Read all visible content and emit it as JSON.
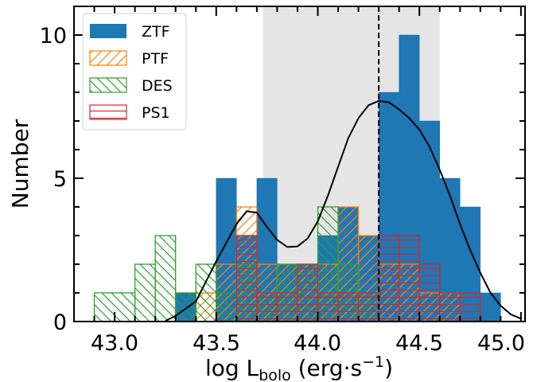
{
  "chart_data": {
    "type": "bar",
    "subtype": "stacked-overlaid histogram",
    "xlabel": {
      "main": "log L",
      "subscript": "bolo",
      "units_open": " (erg·s",
      "superscript": "−1",
      "units_close": ")"
    },
    "ylabel": "Number",
    "xlim": [
      42.8,
      45.02
    ],
    "ylim": [
      0,
      11
    ],
    "x_ticks": [
      "43.0",
      "43.5",
      "44.0",
      "44.5",
      "45.0"
    ],
    "y_ticks": [
      "0",
      "5",
      "10"
    ],
    "shaded_region": {
      "x0": 43.73,
      "x1": 44.6,
      "color": "#e5e5e5"
    },
    "vline": {
      "x": 44.3,
      "style": "dashed",
      "color": "#000000"
    },
    "legend_position": "upper-left",
    "series": [
      {
        "name": "ZTF",
        "style": "filled",
        "color": "#1f77b4",
        "bins": [
          {
            "x0": 43.3,
            "x1": 43.4,
            "count": 1
          },
          {
            "x0": 43.5,
            "x1": 43.6,
            "count": 5
          },
          {
            "x0": 43.6,
            "x1": 43.7,
            "count": 3
          },
          {
            "x0": 43.7,
            "x1": 43.8,
            "count": 5
          },
          {
            "x0": 43.8,
            "x1": 43.9,
            "count": 2
          },
          {
            "x0": 43.9,
            "x1": 44.0,
            "count": 2
          },
          {
            "x0": 44.0,
            "x1": 44.1,
            "count": 3
          },
          {
            "x0": 44.1,
            "x1": 44.2,
            "count": 4
          },
          {
            "x0": 44.2,
            "x1": 44.3,
            "count": 3
          },
          {
            "x0": 44.3,
            "x1": 44.4,
            "count": 8
          },
          {
            "x0": 44.4,
            "x1": 44.5,
            "count": 10
          },
          {
            "x0": 44.5,
            "x1": 44.6,
            "count": 7
          },
          {
            "x0": 44.6,
            "x1": 44.7,
            "count": 5
          },
          {
            "x0": 44.7,
            "x1": 44.8,
            "count": 4
          },
          {
            "x0": 44.8,
            "x1": 44.9,
            "count": 1
          }
        ]
      },
      {
        "name": "PTF",
        "style": "hatch-forward",
        "color": "#ff7f0e",
        "bins": [
          {
            "x0": 43.4,
            "x1": 43.5,
            "count": 1
          },
          {
            "x0": 43.5,
            "x1": 43.6,
            "count": 2
          },
          {
            "x0": 43.6,
            "x1": 43.7,
            "count": 4
          },
          {
            "x0": 43.7,
            "x1": 43.8,
            "count": 2
          },
          {
            "x0": 43.8,
            "x1": 43.9,
            "count": 2
          },
          {
            "x0": 43.9,
            "x1": 44.0,
            "count": 2
          },
          {
            "x0": 44.0,
            "x1": 44.1,
            "count": 2
          },
          {
            "x0": 44.1,
            "x1": 44.2,
            "count": 4
          },
          {
            "x0": 44.2,
            "x1": 44.3,
            "count": 3
          },
          {
            "x0": 44.3,
            "x1": 44.4,
            "count": 2
          },
          {
            "x0": 44.4,
            "x1": 44.5,
            "count": 2
          },
          {
            "x0": 44.5,
            "x1": 44.6,
            "count": 1
          },
          {
            "x0": 44.6,
            "x1": 44.7,
            "count": 1
          }
        ]
      },
      {
        "name": "DES",
        "style": "hatch-backward",
        "color": "#2ca02c",
        "bins": [
          {
            "x0": 42.9,
            "x1": 43.1,
            "count": 1
          },
          {
            "x0": 43.1,
            "x1": 43.2,
            "count": 2
          },
          {
            "x0": 43.2,
            "x1": 43.3,
            "count": 3
          },
          {
            "x0": 43.3,
            "x1": 43.4,
            "count": 1
          },
          {
            "x0": 43.4,
            "x1": 43.5,
            "count": 2
          },
          {
            "x0": 43.5,
            "x1": 43.6,
            "count": 1
          },
          {
            "x0": 43.6,
            "x1": 43.7,
            "count": 2
          },
          {
            "x0": 43.7,
            "x1": 43.8,
            "count": 1
          },
          {
            "x0": 43.8,
            "x1": 43.9,
            "count": 2
          },
          {
            "x0": 43.9,
            "x1": 44.0,
            "count": 2
          },
          {
            "x0": 44.0,
            "x1": 44.1,
            "count": 4
          },
          {
            "x0": 44.1,
            "x1": 44.2,
            "count": 2
          },
          {
            "x0": 44.2,
            "x1": 44.3,
            "count": 1
          }
        ]
      },
      {
        "name": "PS1",
        "style": "hatch-horizontal",
        "color": "#d62728",
        "bins": [
          {
            "x0": 43.6,
            "x1": 43.7,
            "count": 3
          },
          {
            "x0": 43.7,
            "x1": 43.8,
            "count": 1
          },
          {
            "x0": 43.8,
            "x1": 43.9,
            "count": 1
          },
          {
            "x0": 43.9,
            "x1": 44.0,
            "count": 2
          },
          {
            "x0": 44.0,
            "x1": 44.1,
            "count": 1
          },
          {
            "x0": 44.1,
            "x1": 44.2,
            "count": 1
          },
          {
            "x0": 44.2,
            "x1": 44.3,
            "count": 1
          },
          {
            "x0": 44.3,
            "x1": 44.4,
            "count": 3
          },
          {
            "x0": 44.4,
            "x1": 44.5,
            "count": 3
          },
          {
            "x0": 44.5,
            "x1": 44.6,
            "count": 2
          },
          {
            "x0": 44.6,
            "x1": 44.7,
            "count": 1
          },
          {
            "x0": 44.7,
            "x1": 44.8,
            "count": 1
          }
        ]
      }
    ],
    "kde_curve": {
      "color": "#000000",
      "x": [
        43.25,
        43.3,
        43.4,
        43.5,
        43.6,
        43.65,
        43.7,
        43.75,
        43.8,
        43.85,
        43.9,
        43.95,
        44.0,
        44.05,
        44.1,
        44.15,
        44.2,
        44.25,
        44.3,
        44.35,
        44.4,
        44.45,
        44.5,
        44.55,
        44.6,
        44.65,
        44.7,
        44.75,
        44.8,
        44.85,
        44.9,
        44.95,
        45.0
      ],
      "y": [
        0.02,
        0.2,
        0.7,
        2.1,
        3.4,
        3.85,
        3.8,
        3.3,
        2.85,
        2.6,
        2.62,
        2.9,
        3.5,
        4.4,
        5.4,
        6.4,
        7.1,
        7.55,
        7.7,
        7.65,
        7.4,
        7.1,
        6.7,
        6.1,
        5.3,
        4.4,
        3.4,
        2.5,
        1.7,
        1.0,
        0.55,
        0.25,
        0.1
      ]
    }
  }
}
